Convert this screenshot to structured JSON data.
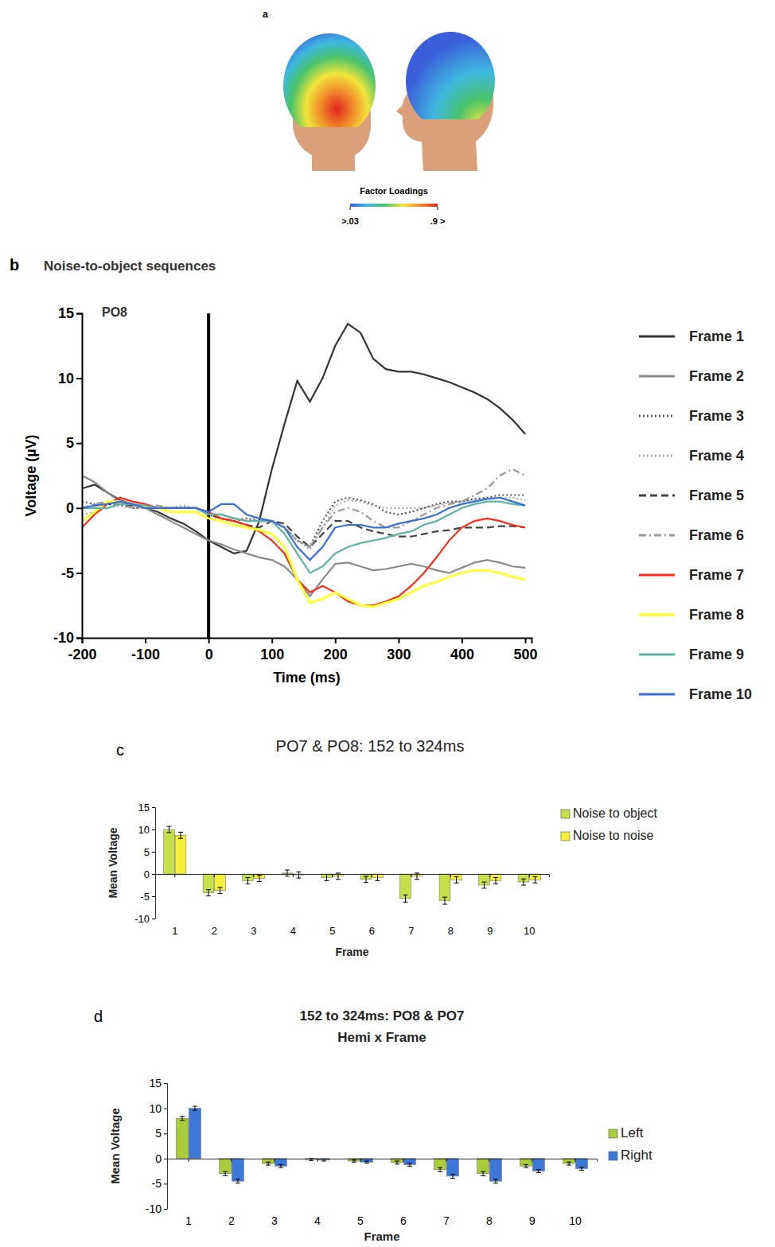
{
  "chart_data": [
    {
      "type": "topomap",
      "panel": "a",
      "title": "Factor Loadings",
      "colorbar_range": [
        0.03,
        0.9
      ],
      "colorbar_ticks": [
        {
          "value": 0.03,
          "label": ">.03"
        },
        {
          "value": 0.9,
          "label": ".9 >"
        }
      ]
    },
    {
      "type": "line",
      "panel": "b",
      "title": "Noise-to-object sequences",
      "annotation": "PO8",
      "x_label": "Time (ms)",
      "y_label": "Voltage (µV)",
      "xlim": [
        -200,
        510
      ],
      "xticks": [
        -200,
        -100,
        0,
        100,
        200,
        300,
        400,
        500
      ],
      "ylim": [
        -10,
        15
      ],
      "yticks": [
        -10,
        -5,
        0,
        5,
        10,
        15
      ],
      "vline_x": 0,
      "legend": "right",
      "x": [
        -200,
        -180,
        -160,
        -140,
        -120,
        -100,
        -80,
        -60,
        -40,
        -20,
        0,
        20,
        40,
        60,
        80,
        100,
        120,
        140,
        160,
        180,
        200,
        220,
        240,
        260,
        280,
        300,
        320,
        340,
        360,
        380,
        400,
        420,
        440,
        460,
        480,
        500
      ],
      "series": [
        {
          "name": "Frame 1",
          "color": "#333333",
          "line_style": "solid",
          "values": [
            1.5,
            1.8,
            1.2,
            0.6,
            0.3,
            0,
            -0.3,
            -0.8,
            -1.2,
            -1.8,
            -2.5,
            -3,
            -3.5,
            -3.3,
            -1,
            3,
            6.5,
            9.8,
            8.2,
            10,
            12.5,
            14.2,
            13.5,
            11.5,
            10.7,
            10.5,
            10.5,
            10.3,
            10,
            9.7,
            9.3,
            8.9,
            8.4,
            7.7,
            6.8,
            5.7
          ]
        },
        {
          "name": "Frame 2",
          "color": "#8a8a8a",
          "line_style": "solid",
          "values": [
            2.5,
            2,
            1.2,
            0.5,
            0.2,
            0,
            -0.5,
            -1,
            -1.5,
            -2,
            -2.5,
            -2.8,
            -3.2,
            -3.5,
            -3.8,
            -4,
            -4.5,
            -5.5,
            -6.8,
            -5.5,
            -4.3,
            -4.2,
            -4.5,
            -4.8,
            -4.7,
            -4.5,
            -4.3,
            -4.5,
            -4.8,
            -5,
            -4.6,
            -4.2,
            -4,
            -4.2,
            -4.5,
            -4.6
          ]
        },
        {
          "name": "Frame 3",
          "color": "#555555",
          "line_style": "dotted",
          "values": [
            0.5,
            0.3,
            0.3,
            0.2,
            0,
            0,
            0,
            0,
            0,
            0,
            -0.5,
            -0.8,
            -1,
            -0.8,
            -1,
            -1,
            -1.5,
            -2.5,
            -3,
            -1,
            0.5,
            0.8,
            0.6,
            0.3,
            -0.3,
            -0.5,
            -0.3,
            0,
            0.3,
            0.5,
            0.5,
            0.7,
            0.8,
            1,
            1,
            1
          ]
        },
        {
          "name": "Frame 4",
          "color": "#aaaaaa",
          "line_style": "dotted",
          "values": [
            -0.5,
            -0.3,
            0,
            0.2,
            0.2,
            0,
            0,
            0,
            0.2,
            0,
            -0.5,
            -0.5,
            -0.8,
            -0.8,
            -0.8,
            -1,
            -1.5,
            -2.5,
            -3.2,
            -1.5,
            0.2,
            0.6,
            0.5,
            0.2,
            0,
            0,
            0,
            0,
            0.2,
            0.4,
            0.5,
            0.6,
            0.7,
            0.8,
            0.8,
            0.6
          ]
        },
        {
          "name": "Frame 5",
          "color": "#444444",
          "line_style": "dashed",
          "values": [
            0,
            0.2,
            0.3,
            0.3,
            0.2,
            0,
            0,
            0,
            0,
            0,
            -0.5,
            -0.8,
            -1,
            -1.3,
            -1.5,
            -1,
            -1.2,
            -2.2,
            -3,
            -2,
            -1,
            -1,
            -1.5,
            -1.8,
            -2,
            -2.2,
            -2.2,
            -2,
            -1.8,
            -1.7,
            -1.5,
            -1.5,
            -1.5,
            -1.4,
            -1.4,
            -1.5
          ]
        },
        {
          "name": "Frame 6",
          "color": "#999999",
          "line_style": "dashdot",
          "values": [
            0,
            0.3,
            0.5,
            0.3,
            0,
            0,
            0.2,
            0,
            0,
            0,
            -0.5,
            -0.5,
            -0.8,
            -1,
            -1,
            -1,
            -1.5,
            -2.5,
            -3,
            -1.5,
            -0.3,
            0,
            -0.3,
            -1,
            -1.5,
            -1.5,
            -1,
            -0.5,
            0,
            0.3,
            0.5,
            1,
            1.5,
            2.5,
            3,
            2.5
          ]
        },
        {
          "name": "Frame 7",
          "color": "#ff2a1a",
          "line_style": "solid",
          "values": [
            -1.5,
            -0.5,
            0.3,
            0.8,
            0.5,
            0.3,
            0,
            0,
            0,
            0,
            -0.3,
            -0.8,
            -1,
            -1.3,
            -1.8,
            -2.5,
            -3.5,
            -5.5,
            -6.5,
            -6,
            -6.5,
            -7.2,
            -7.5,
            -7.5,
            -7.2,
            -6.8,
            -6,
            -5,
            -3.8,
            -2.5,
            -1.5,
            -1,
            -0.8,
            -1,
            -1.3,
            -1.5
          ]
        },
        {
          "name": "Frame 8",
          "color": "#ffff33",
          "line_style": "solid",
          "values": [
            -1,
            -0.3,
            0.5,
            0.5,
            0.3,
            0,
            0,
            -0.3,
            -0.3,
            -0.3,
            -0.8,
            -1,
            -1.3,
            -1.5,
            -1.7,
            -2,
            -3,
            -5.5,
            -7.3,
            -7,
            -6.5,
            -7,
            -7.5,
            -7.6,
            -7.3,
            -7,
            -6.5,
            -6,
            -5.7,
            -5.3,
            -5,
            -4.8,
            -4.8,
            -5,
            -5.3,
            -5.5
          ]
        },
        {
          "name": "Frame 9",
          "color": "#5fb3a4",
          "line_style": "solid",
          "values": [
            0,
            0,
            0,
            0.3,
            0.3,
            0.2,
            0,
            0,
            0,
            0,
            -0.5,
            -0.5,
            -0.8,
            -1,
            -1,
            -1,
            -2,
            -3.5,
            -5,
            -4.5,
            -3.5,
            -3,
            -2.7,
            -2.5,
            -2.3,
            -2,
            -1.8,
            -1.3,
            -1,
            -0.5,
            0,
            0.3,
            0.5,
            0.5,
            0.3,
            0.2
          ]
        },
        {
          "name": "Frame 10",
          "color": "#3a6fd8",
          "line_style": "solid",
          "values": [
            0,
            0.2,
            0.3,
            0.5,
            0.3,
            0,
            0,
            0,
            0,
            0,
            -0.3,
            0.3,
            0.3,
            -0.5,
            -0.8,
            -1,
            -1.5,
            -3,
            -4,
            -3,
            -1.5,
            -1.3,
            -1.3,
            -1.5,
            -1.5,
            -1.2,
            -1,
            -0.8,
            -0.5,
            0,
            0.3,
            0.5,
            0.7,
            0.8,
            0.5,
            0.2
          ]
        }
      ]
    },
    {
      "type": "bar",
      "panel": "c",
      "title": "PO7 & PO8: 152 to 324ms",
      "x_label": "Frame",
      "y_label": "Mean Voltage",
      "legend": "top-right",
      "categories": [
        "1",
        "2",
        "3",
        "4",
        "5",
        "6",
        "7",
        "8",
        "9",
        "10"
      ],
      "ylim": [
        -10,
        15
      ],
      "yticks": [
        -10,
        -5,
        0,
        5,
        10,
        15
      ],
      "series": [
        {
          "name": "Noise to object",
          "color": "#c5e048",
          "values": [
            10,
            -4.2,
            -1.5,
            0.2,
            -0.8,
            -1.2,
            -5.5,
            -6,
            -2.5,
            -1.8
          ],
          "errors": [
            0.7,
            0.7,
            0.7,
            0.7,
            0.7,
            0.7,
            0.8,
            0.8,
            0.7,
            0.7
          ]
        },
        {
          "name": "Noise to noise",
          "color": "#f4f03a",
          "values": [
            8.7,
            -3.7,
            -1,
            -0.2,
            -0.5,
            -0.8,
            -0.5,
            -1.3,
            -1.5,
            -1.3
          ],
          "errors": [
            0.7,
            0.7,
            0.7,
            0.7,
            0.7,
            0.7,
            0.7,
            0.7,
            0.7,
            0.7
          ]
        }
      ]
    },
    {
      "type": "bar",
      "panel": "d",
      "title": "152 to 324ms: PO8 & PO7",
      "subtitle": "Hemi x Frame",
      "x_label": "Frame",
      "y_label": "Mean Voltage",
      "legend": "right",
      "categories": [
        "1",
        "2",
        "3",
        "4",
        "5",
        "6",
        "7",
        "8",
        "9",
        "10"
      ],
      "ylim": [
        -10,
        15
      ],
      "yticks": [
        -10,
        -5,
        0,
        5,
        10,
        15
      ],
      "series": [
        {
          "name": "Left",
          "color": "#aacc3a",
          "values": [
            8,
            -3,
            -1,
            -0.2,
            -0.5,
            -0.8,
            -2.2,
            -3,
            -1.5,
            -1
          ],
          "errors": [
            0.4,
            0.4,
            0.3,
            0.2,
            0.2,
            0.3,
            0.4,
            0.4,
            0.3,
            0.3
          ]
        },
        {
          "name": "Right",
          "color": "#3c78d8",
          "values": [
            10,
            -4.5,
            -1.5,
            -0.3,
            -0.7,
            -1.2,
            -3.5,
            -4.5,
            -2.5,
            -2
          ],
          "errors": [
            0.4,
            0.4,
            0.3,
            0.2,
            0.2,
            0.3,
            0.4,
            0.4,
            0.3,
            0.3
          ]
        }
      ]
    }
  ]
}
